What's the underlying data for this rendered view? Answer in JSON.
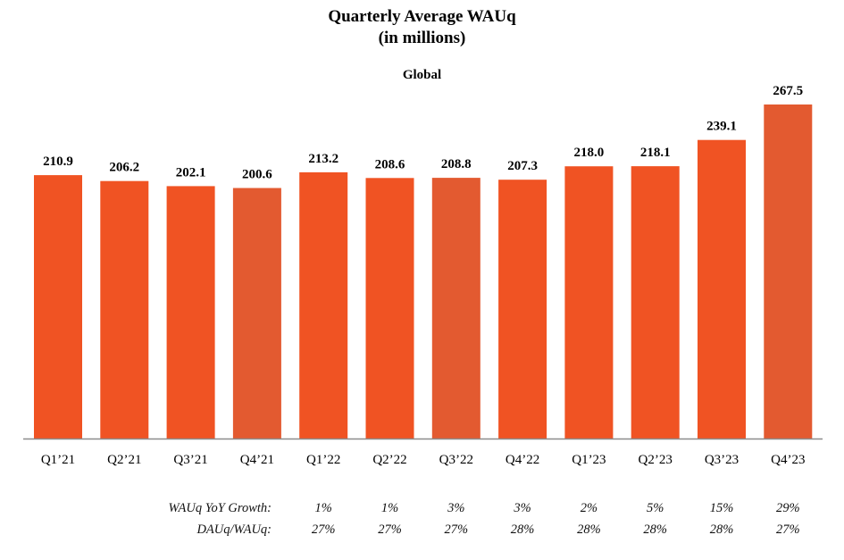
{
  "chart_data": {
    "type": "bar",
    "title": "Quarterly Average WAUq",
    "title_line2": "(in millions)",
    "subtitle": "Global",
    "xlabel": "",
    "ylabel": "",
    "ylim": [
      0,
      267.5
    ],
    "grid": false,
    "categories": [
      "Q1’21",
      "Q2’21",
      "Q3’21",
      "Q4’21",
      "Q1’22",
      "Q2’22",
      "Q3’22",
      "Q4’22",
      "Q1’23",
      "Q2’23",
      "Q3’23",
      "Q4’23"
    ],
    "values": [
      210.9,
      206.2,
      202.1,
      200.6,
      213.2,
      208.6,
      208.8,
      207.3,
      218.0,
      218.1,
      239.1,
      267.5
    ],
    "value_labels": [
      "210.9",
      "206.2",
      "202.1",
      "200.6",
      "213.2",
      "208.6",
      "208.8",
      "207.3",
      "218.0",
      "218.1",
      "239.1",
      "267.5"
    ],
    "bar_color": "#f05323",
    "bar_color_alt": "#e35a30",
    "table_rows": [
      {
        "label": "WAUq YoY Growth:",
        "values": [
          "1%",
          "1%",
          "3%",
          "3%",
          "2%",
          "5%",
          "15%",
          "29%"
        ],
        "start_index": 4
      },
      {
        "label": "DAUq/WAUq:",
        "values": [
          "27%",
          "27%",
          "27%",
          "28%",
          "28%",
          "28%",
          "28%",
          "27%"
        ],
        "start_index": 4
      }
    ]
  }
}
